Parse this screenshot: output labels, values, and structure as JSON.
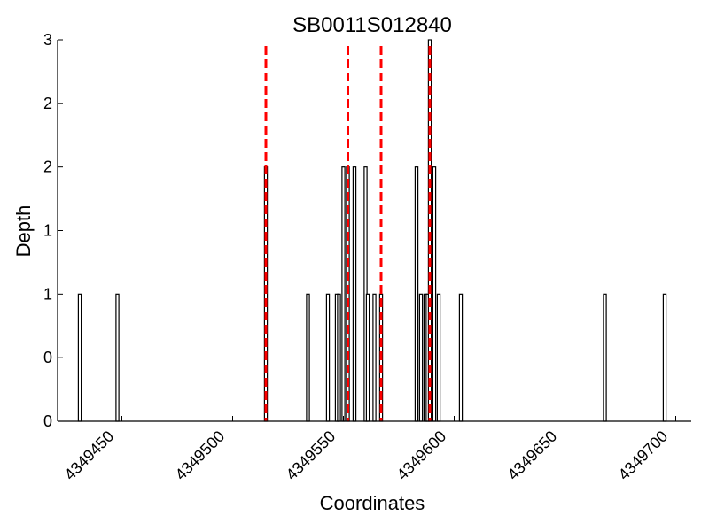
{
  "chart_data": {
    "type": "bar",
    "title": "SB0011S012840",
    "xlabel": "Coordinates",
    "ylabel": "Depth",
    "xlim": [
      4349421,
      4349707
    ],
    "ylim": [
      0,
      3
    ],
    "x_ticks": [
      4349450,
      4349500,
      4349550,
      4349600,
      4349650,
      4349700
    ],
    "x_tick_labels": [
      "4349450",
      "4349500",
      "4349550",
      "4349600",
      "4349650",
      "4349700"
    ],
    "y_ticks": [
      0,
      0.5,
      1,
      1.5,
      2,
      2.5,
      3
    ],
    "y_tick_labels": [
      "0",
      "0",
      "1",
      "1",
      "2",
      "2",
      "3"
    ],
    "grid": false,
    "bar_color": "#000000",
    "marker_color": "#ff0000",
    "series": [
      {
        "x": [
          4349431,
          4349448,
          4349515,
          4349534,
          4349543,
          4349547,
          4349548,
          4349550,
          4349552,
          4349555,
          4349560,
          4349561,
          4349564,
          4349567,
          4349583,
          4349585,
          4349587,
          4349588,
          4349589,
          4349591,
          4349593,
          4349603,
          4349668,
          4349695
        ],
        "values": [
          1,
          1,
          2,
          1,
          1,
          1,
          1,
          2,
          2,
          2,
          2,
          1,
          1,
          1,
          2,
          1,
          1,
          1,
          3,
          2,
          1,
          1,
          1,
          1
        ]
      }
    ],
    "markers": [
      {
        "x": 4349515,
        "style": "dashed"
      },
      {
        "x": 4349552,
        "style": "dashed"
      },
      {
        "x": 4349567,
        "style": "dashed"
      },
      {
        "x": 4349589,
        "style": "dashed"
      }
    ]
  }
}
